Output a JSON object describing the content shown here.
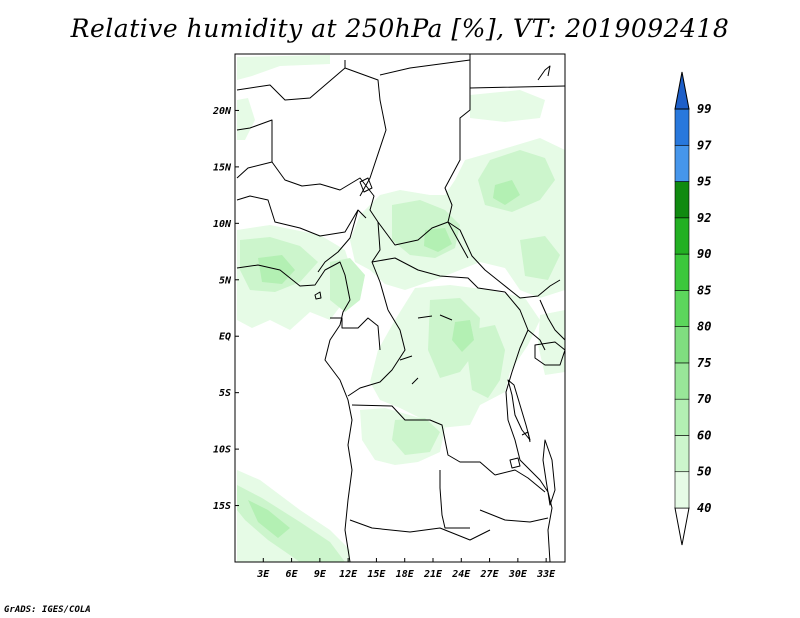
{
  "title": "Relative humidity at 250hPa [%], VT: 2019092418",
  "credit": "GrADS: IGES/COLA",
  "map": {
    "lon_range": [
      0,
      35
    ],
    "lat_range": [
      -20,
      25
    ],
    "x_ticks": [
      {
        "lon": 3,
        "label": "3E"
      },
      {
        "lon": 6,
        "label": "6E"
      },
      {
        "lon": 9,
        "label": "9E"
      },
      {
        "lon": 12,
        "label": "12E"
      },
      {
        "lon": 15,
        "label": "15E"
      },
      {
        "lon": 18,
        "label": "18E"
      },
      {
        "lon": 21,
        "label": "21E"
      },
      {
        "lon": 24,
        "label": "24E"
      },
      {
        "lon": 27,
        "label": "27E"
      },
      {
        "lon": 30,
        "label": "30E"
      },
      {
        "lon": 33,
        "label": "33E"
      }
    ],
    "y_ticks": [
      {
        "lat": 20,
        "label": "20N"
      },
      {
        "lat": 15,
        "label": "15N"
      },
      {
        "lat": 10,
        "label": "10N"
      },
      {
        "lat": 5,
        "label": "5N"
      },
      {
        "lat": 0,
        "label": "EQ"
      },
      {
        "lat": -5,
        "label": "5S"
      },
      {
        "lat": -10,
        "label": "10S"
      },
      {
        "lat": -15,
        "label": "15S"
      }
    ]
  },
  "colorbar": {
    "levels": [
      "40",
      "50",
      "60",
      "70",
      "75",
      "80",
      "85",
      "90",
      "92",
      "95",
      "97",
      "99"
    ],
    "colors": [
      "#ffffff",
      "#e6fbe6",
      "#ccf5cc",
      "#b3f0b3",
      "#99e699",
      "#80de80",
      "#5cd65c",
      "#3cc83c",
      "#23b023",
      "#108a10",
      "#4696eb",
      "#2878dc",
      "#1e5fc8"
    ]
  }
}
